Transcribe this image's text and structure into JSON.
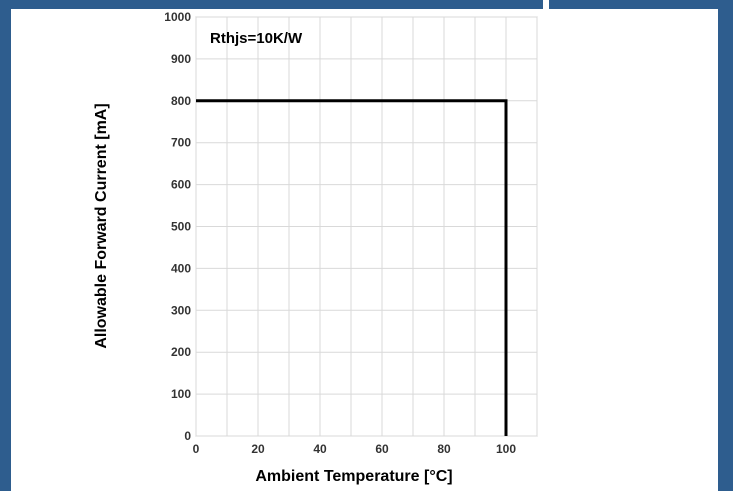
{
  "colors": {
    "frame": "#2e5d8e",
    "grid": "#d9d9d9",
    "line": "#000000",
    "plot_border": "#bfbfbf"
  },
  "chart_data": {
    "type": "line",
    "annotation": "Rthjs=10K/W",
    "xlabel": "Ambient Temperature [°C]",
    "ylabel": "Allowable Forward Current [mA]",
    "xlim": [
      0,
      110
    ],
    "ylim": [
      0,
      1000
    ],
    "x_ticks": [
      0,
      20,
      40,
      60,
      80,
      100
    ],
    "y_ticks": [
      0,
      100,
      200,
      300,
      400,
      500,
      600,
      700,
      800,
      900,
      1000
    ],
    "grid": true,
    "series": [
      {
        "x": [
          0,
          100,
          100
        ],
        "y": [
          800,
          800,
          0
        ]
      }
    ]
  }
}
